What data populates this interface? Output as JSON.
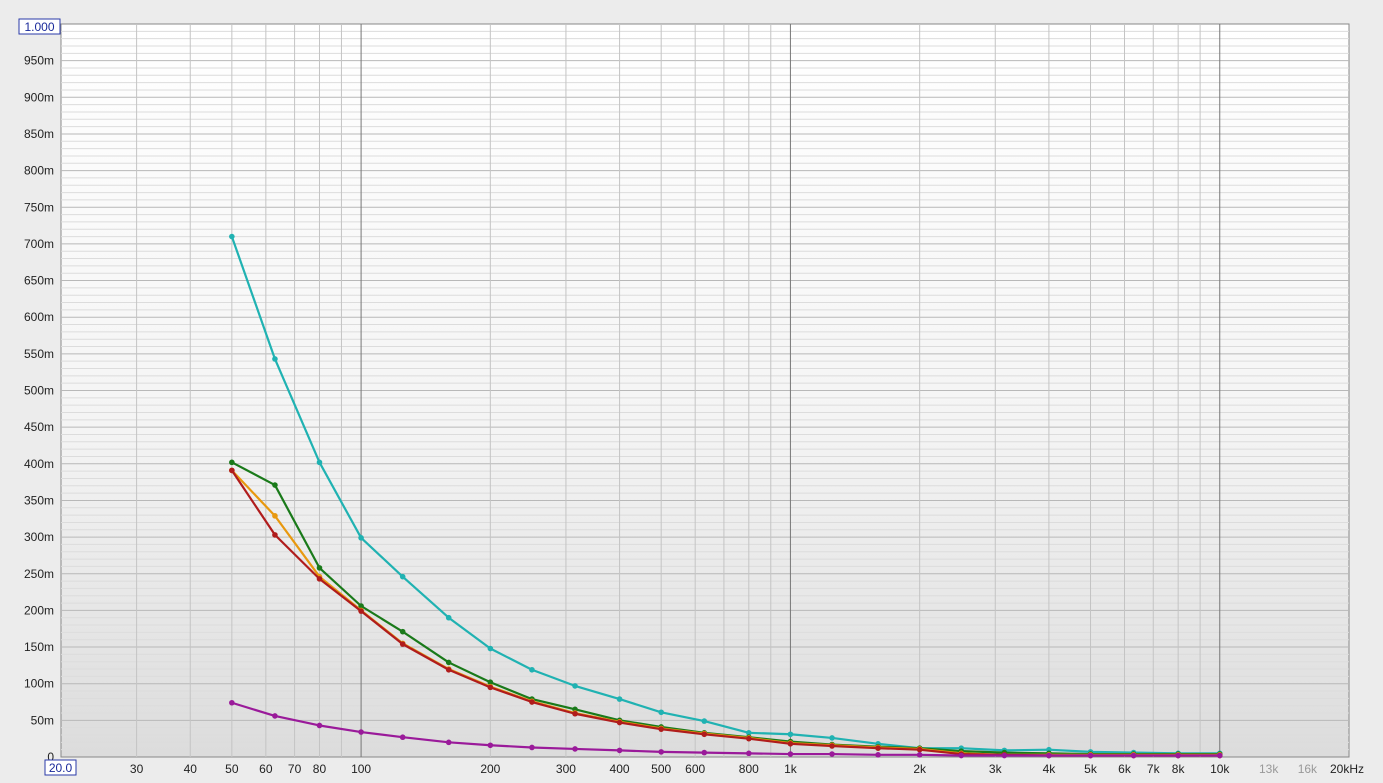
{
  "chart_data": {
    "type": "line",
    "x_scale": "log",
    "xlim": [
      20,
      20000
    ],
    "ylim": [
      0,
      1000
    ],
    "grid": true,
    "y_top_label": "1.000",
    "x_start_label": "20.0",
    "y_ticks": [
      {
        "value": 950,
        "label": "950m"
      },
      {
        "value": 900,
        "label": "900m"
      },
      {
        "value": 850,
        "label": "850m"
      },
      {
        "value": 800,
        "label": "800m"
      },
      {
        "value": 750,
        "label": "750m"
      },
      {
        "value": 700,
        "label": "700m"
      },
      {
        "value": 650,
        "label": "650m"
      },
      {
        "value": 600,
        "label": "600m"
      },
      {
        "value": 550,
        "label": "550m"
      },
      {
        "value": 500,
        "label": "500m"
      },
      {
        "value": 450,
        "label": "450m"
      },
      {
        "value": 400,
        "label": "400m"
      },
      {
        "value": 350,
        "label": "350m"
      },
      {
        "value": 300,
        "label": "300m"
      },
      {
        "value": 250,
        "label": "250m"
      },
      {
        "value": 200,
        "label": "200m"
      },
      {
        "value": 150,
        "label": "150m"
      },
      {
        "value": 100,
        "label": "100m"
      },
      {
        "value": 50,
        "label": "50m"
      },
      {
        "value": 0,
        "label": "0"
      }
    ],
    "x_ticks": [
      {
        "value": 30,
        "label": "30"
      },
      {
        "value": 40,
        "label": "40"
      },
      {
        "value": 50,
        "label": "50"
      },
      {
        "value": 60,
        "label": "60"
      },
      {
        "value": 70,
        "label": "70"
      },
      {
        "value": 80,
        "label": "80"
      },
      {
        "value": 100,
        "label": "100"
      },
      {
        "value": 200,
        "label": "200"
      },
      {
        "value": 300,
        "label": "300"
      },
      {
        "value": 400,
        "label": "400"
      },
      {
        "value": 500,
        "label": "500"
      },
      {
        "value": 600,
        "label": "600"
      },
      {
        "value": 800,
        "label": "800"
      },
      {
        "value": 1000,
        "label": "1k"
      },
      {
        "value": 2000,
        "label": "2k"
      },
      {
        "value": 3000,
        "label": "3k"
      },
      {
        "value": 4000,
        "label": "4k"
      },
      {
        "value": 5000,
        "label": "5k"
      },
      {
        "value": 6000,
        "label": "6k"
      },
      {
        "value": 7000,
        "label": "7k"
      },
      {
        "value": 8000,
        "label": "8k"
      },
      {
        "value": 10000,
        "label": "10k"
      },
      {
        "value": 13000,
        "label": "13k",
        "dim": true
      },
      {
        "value": 16000,
        "label": "16k",
        "dim": true
      },
      {
        "value": 20000,
        "label": "20kHz"
      }
    ],
    "x": [
      50,
      63,
      80,
      100,
      125,
      160,
      200,
      250,
      315,
      400,
      500,
      630,
      800,
      1000,
      1250,
      1600,
      2000,
      2500,
      3150,
      4000,
      5000,
      6300,
      8000,
      10000
    ],
    "series": [
      {
        "color": "#20b2b2",
        "values": [
          710,
          543,
          402,
          299,
          246,
          190,
          148,
          119,
          97,
          79,
          61,
          49,
          33,
          31,
          26,
          18,
          12,
          12,
          9,
          10,
          7,
          6,
          5,
          5
        ]
      },
      {
        "color": "#1a7a1a",
        "values": [
          402,
          371,
          258,
          206,
          171,
          129,
          102,
          79,
          65,
          50,
          41,
          33,
          27,
          21,
          17,
          14,
          12,
          8,
          6,
          5,
          4,
          4,
          4,
          4
        ]
      },
      {
        "color": "#e8980e",
        "values": [
          391,
          329,
          246,
          200,
          155,
          120,
          96,
          76,
          60,
          48,
          39,
          32,
          26,
          19,
          16,
          13,
          11,
          5,
          3,
          3,
          3,
          3,
          3,
          3
        ]
      },
      {
        "color": "#b01c1c",
        "values": [
          391,
          303,
          243,
          199,
          154,
          119,
          95,
          75,
          59,
          47,
          38,
          31,
          25,
          18,
          15,
          12,
          10,
          4,
          3,
          2,
          2,
          2,
          2,
          2
        ]
      },
      {
        "color": "#9a1a9a",
        "values": [
          74,
          56,
          43,
          34,
          27,
          20,
          16,
          13,
          11,
          9,
          7,
          6,
          5,
          4,
          4,
          3,
          3,
          2,
          2,
          2,
          2,
          2,
          2,
          2
        ]
      }
    ]
  }
}
